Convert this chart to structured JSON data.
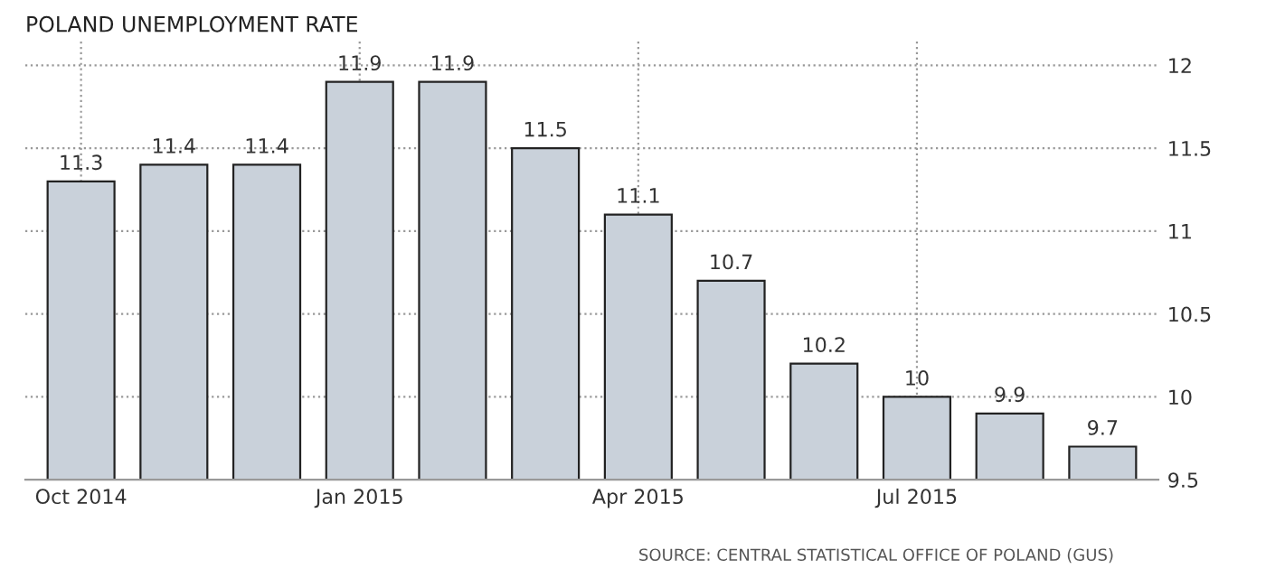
{
  "chart_data": {
    "type": "bar",
    "title": "POLAND UNEMPLOYMENT RATE",
    "categories": [
      "Oct 2014",
      null,
      null,
      "Jan 2015",
      null,
      null,
      "Apr 2015",
      null,
      null,
      "Jul 2015",
      null,
      null
    ],
    "values": [
      11.3,
      11.4,
      11.4,
      11.9,
      11.9,
      11.5,
      11.1,
      10.7,
      10.2,
      10,
      9.9,
      9.7
    ],
    "color": "#c9d1da",
    "ylim": [
      9.5,
      12.15
    ],
    "yticks": [
      9.5,
      10,
      10.5,
      11,
      11.5,
      12
    ],
    "grid": true,
    "data_labels": true,
    "annotations": [
      "SOURCE: CENTRAL STATISTICAL OFFICE OF POLAND (GUS)"
    ]
  }
}
